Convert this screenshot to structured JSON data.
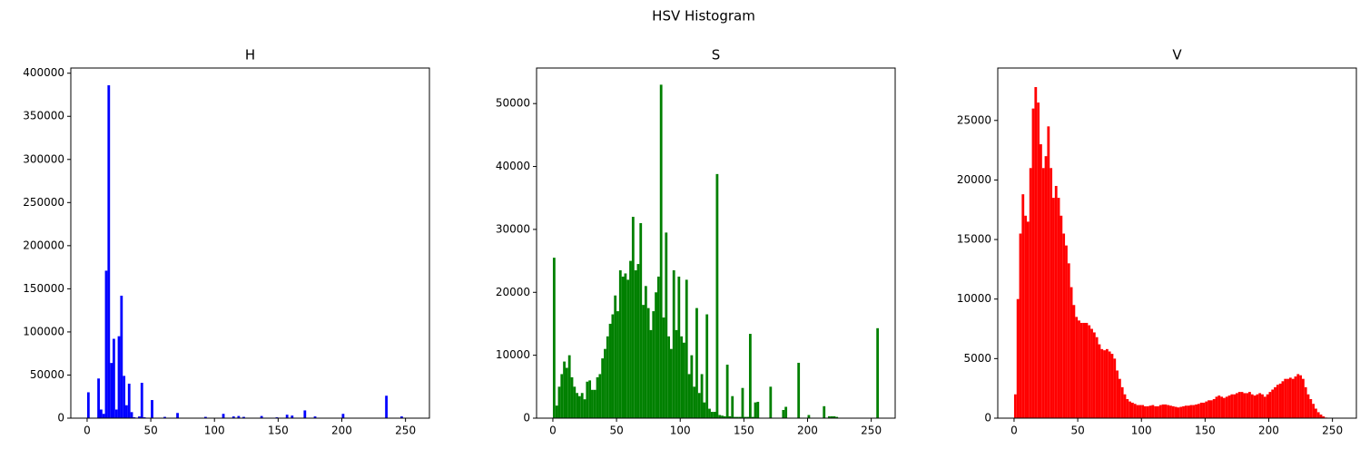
{
  "title": "HSV Histogram",
  "chart_data": [
    {
      "type": "histogram",
      "title": "H",
      "color": "#0000ff",
      "bins": [
        0,
        2,
        4,
        6,
        8,
        10,
        12,
        14,
        16,
        18,
        20,
        22,
        24,
        26,
        28,
        30,
        32,
        34,
        36,
        38,
        40,
        42,
        44,
        46,
        48,
        50,
        52,
        54,
        56,
        58,
        60,
        62,
        64,
        66,
        68,
        70,
        72,
        74,
        76,
        78,
        80,
        82,
        84,
        86,
        88,
        90,
        92,
        94,
        96,
        98,
        100,
        102,
        104,
        106,
        108,
        110,
        112,
        114,
        116,
        118,
        120,
        122,
        124,
        126,
        128,
        130,
        132,
        134,
        136,
        138,
        140,
        142,
        144,
        146,
        148,
        150,
        152,
        154,
        156,
        158,
        160,
        162,
        164,
        166,
        168,
        170,
        172,
        174,
        176,
        178,
        180,
        182,
        184,
        186,
        188,
        190,
        192,
        194,
        196,
        198,
        200,
        202,
        204,
        206,
        208,
        210,
        212,
        214,
        216,
        218,
        220,
        222,
        224,
        226,
        228,
        230,
        232,
        234,
        236,
        238,
        240,
        242,
        244,
        246,
        248,
        250,
        252,
        254,
        256
      ],
      "values": [
        30000,
        0,
        0,
        0,
        46000,
        10000,
        5000,
        171000,
        386000,
        64000,
        92000,
        10000,
        95000,
        142000,
        49000,
        15000,
        40000,
        7000,
        1000,
        0,
        2000,
        41000,
        1000,
        0,
        0,
        21000,
        0,
        0,
        500,
        0,
        1500,
        0,
        0,
        0,
        0,
        6000,
        0,
        0,
        0,
        0,
        0,
        0,
        0,
        0,
        0,
        0,
        1500,
        0,
        0,
        0,
        0,
        0,
        0,
        5000,
        0,
        0,
        0,
        2000,
        0,
        2500,
        0,
        1500,
        0,
        0,
        0,
        0,
        0,
        0,
        2500,
        0,
        0,
        0,
        0,
        0,
        1000,
        0,
        0,
        0,
        4000,
        0,
        3000,
        0,
        0,
        0,
        0,
        9000,
        0,
        0,
        0,
        2000,
        0,
        0,
        0,
        0,
        0,
        0,
        0,
        0,
        0,
        0,
        5000,
        0,
        0,
        0,
        0,
        0,
        0,
        0,
        0,
        0,
        0,
        0,
        0,
        0,
        0,
        0,
        0,
        26000,
        0,
        0,
        0,
        0,
        0,
        2000,
        0,
        0,
        0,
        0
      ],
      "xlim": [
        -12.8,
        268.8
      ],
      "xticks": [
        0,
        50,
        100,
        150,
        200,
        250
      ],
      "ylim": [
        0,
        406000
      ],
      "yticks": [
        0,
        50000,
        100000,
        150000,
        200000,
        250000,
        300000,
        350000,
        400000
      ]
    },
    {
      "type": "histogram",
      "title": "S",
      "color": "#008000",
      "bins": [
        0,
        2,
        4,
        6,
        8,
        10,
        12,
        14,
        16,
        18,
        20,
        22,
        24,
        26,
        28,
        30,
        32,
        34,
        36,
        38,
        40,
        42,
        44,
        46,
        48,
        50,
        52,
        54,
        56,
        58,
        60,
        62,
        64,
        66,
        68,
        70,
        72,
        74,
        76,
        78,
        80,
        82,
        84,
        86,
        88,
        90,
        92,
        94,
        96,
        98,
        100,
        102,
        104,
        106,
        108,
        110,
        112,
        114,
        116,
        118,
        120,
        122,
        124,
        126,
        128,
        130,
        132,
        134,
        136,
        138,
        140,
        142,
        144,
        146,
        148,
        150,
        152,
        154,
        156,
        158,
        160,
        162,
        164,
        166,
        168,
        170,
        172,
        174,
        176,
        178,
        180,
        182,
        184,
        186,
        188,
        190,
        192,
        194,
        196,
        198,
        200,
        202,
        204,
        206,
        208,
        210,
        212,
        214,
        216,
        218,
        220,
        222,
        224,
        226,
        228,
        230,
        232,
        234,
        236,
        238,
        240,
        242,
        244,
        246,
        248,
        250,
        252,
        254,
        256
      ],
      "values": [
        25500,
        2000,
        5000,
        7000,
        9000,
        8000,
        10000,
        6500,
        5000,
        4000,
        3500,
        4000,
        3000,
        5800,
        6000,
        4500,
        4500,
        6500,
        7000,
        9500,
        11000,
        13000,
        15000,
        16500,
        19500,
        17000,
        23500,
        22500,
        23000,
        22000,
        25000,
        32000,
        23500,
        24500,
        31000,
        18000,
        21000,
        17500,
        14000,
        17000,
        20000,
        22500,
        53000,
        16000,
        29500,
        13000,
        11000,
        23500,
        14000,
        22500,
        13000,
        12000,
        22000,
        7000,
        10000,
        5000,
        17500,
        4000,
        7000,
        2500,
        16500,
        1500,
        1000,
        1000,
        38800,
        500,
        400,
        300,
        8500,
        300,
        3500,
        200,
        200,
        200,
        4800,
        200,
        200,
        13400,
        200,
        2500,
        2600,
        0,
        0,
        0,
        0,
        5000,
        0,
        0,
        0,
        0,
        1300,
        1800,
        0,
        0,
        0,
        0,
        8800,
        0,
        0,
        0,
        500,
        0,
        0,
        0,
        0,
        0,
        1900,
        0,
        300,
        300,
        300,
        200,
        0,
        0,
        0,
        0,
        0,
        0,
        0,
        0,
        0,
        0,
        0,
        0,
        0,
        0,
        0,
        14300
      ],
      "xlim": [
        -12.8,
        268.8
      ],
      "xticks": [
        0,
        50,
        100,
        150,
        200,
        250
      ],
      "ylim": [
        0,
        55650
      ],
      "yticks": [
        0,
        10000,
        20000,
        30000,
        40000,
        50000
      ]
    },
    {
      "type": "histogram",
      "title": "V",
      "color": "#ff0000",
      "bins": [
        0,
        2,
        4,
        6,
        8,
        10,
        12,
        14,
        16,
        18,
        20,
        22,
        24,
        26,
        28,
        30,
        32,
        34,
        36,
        38,
        40,
        42,
        44,
        46,
        48,
        50,
        52,
        54,
        56,
        58,
        60,
        62,
        64,
        66,
        68,
        70,
        72,
        74,
        76,
        78,
        80,
        82,
        84,
        86,
        88,
        90,
        92,
        94,
        96,
        98,
        100,
        102,
        104,
        106,
        108,
        110,
        112,
        114,
        116,
        118,
        120,
        122,
        124,
        126,
        128,
        130,
        132,
        134,
        136,
        138,
        140,
        142,
        144,
        146,
        148,
        150,
        152,
        154,
        156,
        158,
        160,
        162,
        164,
        166,
        168,
        170,
        172,
        174,
        176,
        178,
        180,
        182,
        184,
        186,
        188,
        190,
        192,
        194,
        196,
        198,
        200,
        202,
        204,
        206,
        208,
        210,
        212,
        214,
        216,
        218,
        220,
        222,
        224,
        226,
        228,
        230,
        232,
        234,
        236,
        238,
        240,
        242,
        244,
        246,
        248,
        250,
        252,
        254,
        256
      ],
      "values": [
        2000,
        10000,
        15500,
        18800,
        17000,
        16500,
        21000,
        26000,
        27800,
        26500,
        23000,
        21000,
        22000,
        24500,
        21000,
        18500,
        19500,
        18500,
        17000,
        15500,
        14500,
        13000,
        11000,
        9500,
        8500,
        8200,
        8000,
        8000,
        8000,
        7800,
        7500,
        7200,
        6800,
        6200,
        5800,
        5700,
        5800,
        5600,
        5400,
        5000,
        4000,
        3300,
        2600,
        2000,
        1600,
        1400,
        1300,
        1200,
        1100,
        1100,
        1100,
        1000,
        1000,
        1050,
        1100,
        1000,
        1000,
        1100,
        1150,
        1150,
        1100,
        1050,
        1000,
        950,
        900,
        950,
        1000,
        1050,
        1050,
        1100,
        1100,
        1150,
        1200,
        1300,
        1300,
        1400,
        1500,
        1500,
        1600,
        1800,
        1900,
        1800,
        1700,
        1800,
        1900,
        2000,
        2000,
        2100,
        2200,
        2200,
        2100,
        2100,
        2200,
        2000,
        1900,
        2000,
        2100,
        2000,
        1800,
        2000,
        2200,
        2400,
        2600,
        2800,
        2900,
        3100,
        3300,
        3300,
        3400,
        3300,
        3500,
        3700,
        3600,
        3300,
        2600,
        2000,
        1600,
        1200,
        800,
        500,
        300,
        150,
        50,
        0,
        0,
        0,
        0,
        0
      ],
      "xlim": [
        -12.8,
        268.8
      ],
      "xticks": [
        0,
        50,
        100,
        150,
        200,
        250
      ],
      "ylim": [
        0,
        29400
      ],
      "yticks": [
        0,
        5000,
        10000,
        15000,
        20000,
        25000
      ]
    }
  ]
}
